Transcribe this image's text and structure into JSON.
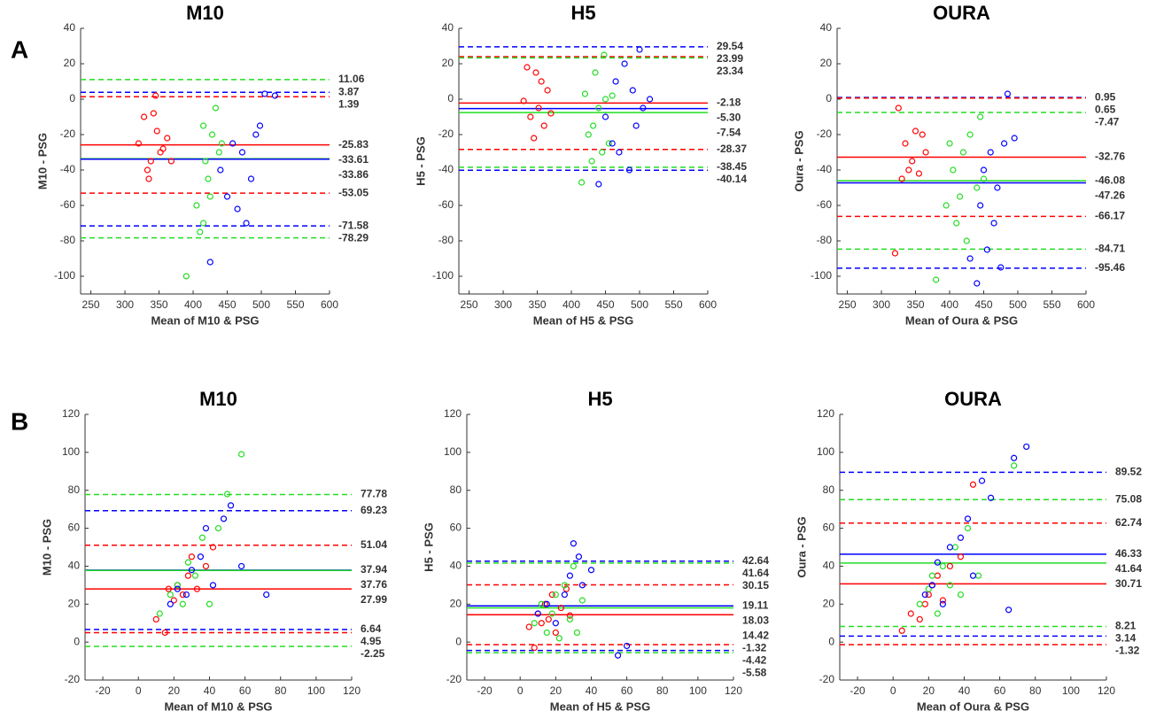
{
  "panel_labels": [
    "A",
    "B"
  ],
  "chart_data": [
    {
      "type": "scatter",
      "title": "M10",
      "xlabel": "Mean of M10 & PSG",
      "ylabel": "M10 - PSG",
      "xlim": [
        235,
        600
      ],
      "ylim": [
        -110,
        40
      ],
      "xticks": [
        250,
        300,
        350,
        400,
        450,
        500,
        550,
        600
      ],
      "yticks": [
        -100,
        -80,
        -60,
        -40,
        -20,
        0,
        20,
        40
      ],
      "series": [
        {
          "color": "#ff0000",
          "x": [
            320,
            328,
            333,
            338,
            342,
            347,
            352,
            356,
            362,
            368,
            335,
            345
          ],
          "values": [
            -25,
            -10,
            -40,
            -35,
            -8,
            -18,
            -30,
            -28,
            -22,
            -35,
            -45,
            2
          ]
        },
        {
          "color": "#22dd22",
          "x": [
            390,
            405,
            410,
            415,
            418,
            422,
            428,
            433,
            438,
            442,
            415,
            425
          ],
          "values": [
            -100,
            -60,
            -75,
            -15,
            -35,
            -45,
            -20,
            -5,
            -30,
            -25,
            -70,
            -55
          ]
        },
        {
          "color": "#0000ff",
          "x": [
            425,
            440,
            450,
            458,
            465,
            472,
            478,
            485,
            492,
            498,
            505,
            520
          ],
          "values": [
            -92,
            -40,
            -55,
            -25,
            -62,
            -30,
            -70,
            -45,
            -20,
            -15,
            3,
            2
          ]
        }
      ],
      "lines": [
        {
          "value": 11.06,
          "color": "#22dd22",
          "dashed": true
        },
        {
          "value": 3.87,
          "color": "#0000ff",
          "dashed": true
        },
        {
          "value": 1.39,
          "color": "#ff0000",
          "dashed": true
        },
        {
          "value": -25.83,
          "color": "#ff0000",
          "dashed": false
        },
        {
          "value": -33.61,
          "color": "#22dd22",
          "dashed": false
        },
        {
          "value": -33.86,
          "color": "#0000ff",
          "dashed": false
        },
        {
          "value": -53.05,
          "color": "#ff0000",
          "dashed": true
        },
        {
          "value": -71.58,
          "color": "#0000ff",
          "dashed": true
        },
        {
          "value": -78.29,
          "color": "#22dd22",
          "dashed": true
        }
      ]
    },
    {
      "type": "scatter",
      "title": "H5",
      "xlabel": "Mean of H5 & PSG",
      "ylabel": "H5 - PSG",
      "xlim": [
        235,
        600
      ],
      "ylim": [
        -110,
        40
      ],
      "xticks": [
        250,
        300,
        350,
        400,
        450,
        500,
        550,
        600
      ],
      "yticks": [
        -100,
        -80,
        -60,
        -40,
        -20,
        0,
        20,
        40
      ],
      "series": [
        {
          "color": "#ff0000",
          "x": [
            330,
            335,
            340,
            345,
            348,
            352,
            356,
            360,
            365,
            370
          ],
          "values": [
            -1,
            18,
            -10,
            -22,
            15,
            -5,
            10,
            -15,
            5,
            -8
          ]
        },
        {
          "color": "#22dd22",
          "x": [
            415,
            420,
            425,
            430,
            435,
            440,
            445,
            450,
            455,
            460,
            432,
            448
          ],
          "values": [
            -47,
            3,
            -20,
            -35,
            15,
            -5,
            -30,
            0,
            -25,
            2,
            -15,
            25
          ]
        },
        {
          "color": "#0000ff",
          "x": [
            440,
            450,
            460,
            465,
            470,
            478,
            485,
            490,
            495,
            500,
            505,
            515
          ],
          "values": [
            -48,
            -10,
            -25,
            10,
            -30,
            20,
            -40,
            5,
            -15,
            28,
            -5,
            0
          ]
        }
      ],
      "lines": [
        {
          "value": 29.54,
          "color": "#0000ff",
          "dashed": true
        },
        {
          "value": 23.99,
          "color": "#ff0000",
          "dashed": true
        },
        {
          "value": 23.34,
          "color": "#22dd22",
          "dashed": true
        },
        {
          "value": -2.18,
          "color": "#ff0000",
          "dashed": false
        },
        {
          "value": -5.3,
          "label": "-5.30",
          "color": "#0000ff",
          "dashed": false
        },
        {
          "value": -7.54,
          "color": "#22dd22",
          "dashed": false
        },
        {
          "value": -28.37,
          "color": "#ff0000",
          "dashed": true
        },
        {
          "value": -38.45,
          "color": "#22dd22",
          "dashed": true
        },
        {
          "value": -40.14,
          "color": "#0000ff",
          "dashed": true
        }
      ]
    },
    {
      "type": "scatter",
      "title": "OURA",
      "xlabel": "Mean of Oura & PSG",
      "ylabel": "Oura - PSG",
      "xlim": [
        235,
        600
      ],
      "ylim": [
        -110,
        40
      ],
      "xticks": [
        250,
        300,
        350,
        400,
        450,
        500,
        550,
        600
      ],
      "yticks": [
        -100,
        -80,
        -60,
        -40,
        -20,
        0,
        20,
        40
      ],
      "series": [
        {
          "color": "#ff0000",
          "x": [
            320,
            325,
            330,
            335,
            340,
            345,
            350,
            355,
            360,
            365
          ],
          "values": [
            -87,
            -5,
            -45,
            -25,
            -40,
            -35,
            -18,
            -42,
            -20,
            -30
          ]
        },
        {
          "color": "#22dd22",
          "x": [
            380,
            395,
            400,
            405,
            410,
            415,
            420,
            425,
            430,
            440,
            445,
            450
          ],
          "values": [
            -102,
            -60,
            -25,
            -40,
            -70,
            -55,
            -30,
            -80,
            -20,
            -50,
            -10,
            -45
          ]
        },
        {
          "color": "#0000ff",
          "x": [
            430,
            440,
            445,
            450,
            455,
            460,
            465,
            470,
            475,
            480,
            485,
            495
          ],
          "values": [
            -90,
            -104,
            -60,
            -40,
            -85,
            -30,
            -70,
            -50,
            -95,
            -25,
            3,
            -22
          ]
        }
      ],
      "lines": [
        {
          "value": 0.95,
          "color": "#0000ff",
          "dashed": true
        },
        {
          "value": 0.65,
          "color": "#ff0000",
          "dashed": true
        },
        {
          "value": -7.47,
          "color": "#22dd22",
          "dashed": true
        },
        {
          "value": -32.76,
          "color": "#ff0000",
          "dashed": false
        },
        {
          "value": -46.08,
          "color": "#22dd22",
          "dashed": false
        },
        {
          "value": -47.26,
          "color": "#0000ff",
          "dashed": false
        },
        {
          "value": -66.17,
          "color": "#ff0000",
          "dashed": true
        },
        {
          "value": -84.71,
          "color": "#22dd22",
          "dashed": true
        },
        {
          "value": -95.46,
          "color": "#0000ff",
          "dashed": true
        }
      ]
    },
    {
      "type": "scatter",
      "title": "M10",
      "xlabel": "Mean of M10 & PSG",
      "ylabel": "M10 - PSG",
      "xlim": [
        -30,
        120
      ],
      "ylim": [
        -20,
        120
      ],
      "xticks": [
        -20,
        0,
        20,
        40,
        60,
        80,
        100,
        120
      ],
      "yticks": [
        -20,
        0,
        20,
        40,
        60,
        80,
        100,
        120
      ],
      "series": [
        {
          "color": "#ff0000",
          "x": [
            10,
            15,
            17,
            20,
            22,
            25,
            28,
            30,
            33,
            38,
            42
          ],
          "values": [
            12,
            5,
            28,
            22,
            30,
            25,
            35,
            45,
            28,
            40,
            50
          ]
        },
        {
          "color": "#22dd22",
          "x": [
            12,
            18,
            22,
            25,
            28,
            32,
            36,
            40,
            45,
            50,
            58
          ],
          "values": [
            15,
            25,
            30,
            20,
            42,
            35,
            55,
            20,
            60,
            78,
            99
          ]
        },
        {
          "color": "#0000ff",
          "x": [
            18,
            22,
            27,
            30,
            35,
            38,
            42,
            48,
            52,
            58,
            72
          ],
          "values": [
            20,
            28,
            25,
            38,
            45,
            60,
            30,
            65,
            72,
            40,
            25
          ]
        }
      ],
      "lines": [
        {
          "value": 77.78,
          "color": "#22dd22",
          "dashed": true
        },
        {
          "value": 69.23,
          "color": "#0000ff",
          "dashed": true
        },
        {
          "value": 51.04,
          "color": "#ff0000",
          "dashed": true
        },
        {
          "value": 37.94,
          "color": "#0000ff",
          "dashed": false
        },
        {
          "value": 37.76,
          "color": "#22dd22",
          "dashed": false
        },
        {
          "value": 27.99,
          "color": "#ff0000",
          "dashed": false
        },
        {
          "value": 6.64,
          "color": "#0000ff",
          "dashed": true
        },
        {
          "value": 4.95,
          "color": "#ff0000",
          "dashed": true
        },
        {
          "value": -2.25,
          "color": "#22dd22",
          "dashed": true
        }
      ]
    },
    {
      "type": "scatter",
      "title": "H5",
      "xlabel": "Mean of H5 & PSG",
      "ylabel": "H5 - PSG",
      "xlim": [
        -30,
        120
      ],
      "ylim": [
        -20,
        120
      ],
      "xticks": [
        -20,
        0,
        20,
        40,
        60,
        80,
        100,
        120
      ],
      "yticks": [
        -20,
        0,
        20,
        40,
        60,
        80,
        100,
        120
      ],
      "series": [
        {
          "color": "#ff0000",
          "x": [
            5,
            8,
            10,
            12,
            14,
            16,
            18,
            20,
            23,
            26,
            28
          ],
          "values": [
            8,
            -3,
            15,
            10,
            20,
            12,
            25,
            5,
            18,
            28,
            14
          ]
        },
        {
          "color": "#22dd22",
          "x": [
            8,
            12,
            15,
            18,
            20,
            22,
            25,
            28,
            30,
            32,
            35
          ],
          "values": [
            10,
            20,
            5,
            15,
            25,
            2,
            30,
            12,
            40,
            5,
            22
          ]
        },
        {
          "color": "#0000ff",
          "x": [
            10,
            15,
            20,
            25,
            28,
            30,
            33,
            35,
            40,
            55,
            60
          ],
          "values": [
            15,
            20,
            10,
            25,
            35,
            52,
            45,
            30,
            38,
            -7,
            -2
          ]
        }
      ],
      "lines": [
        {
          "value": 42.64,
          "color": "#0000ff",
          "dashed": true
        },
        {
          "value": 41.64,
          "color": "#22dd22",
          "dashed": true
        },
        {
          "value": 30.15,
          "color": "#ff0000",
          "dashed": true
        },
        {
          "value": 19.11,
          "color": "#0000ff",
          "dashed": false
        },
        {
          "value": 18.03,
          "color": "#22dd22",
          "dashed": false
        },
        {
          "value": 14.42,
          "color": "#ff0000",
          "dashed": false
        },
        {
          "value": -1.32,
          "color": "#ff0000",
          "dashed": true
        },
        {
          "value": -4.42,
          "color": "#0000ff",
          "dashed": true
        },
        {
          "value": -5.58,
          "color": "#22dd22",
          "dashed": true
        }
      ]
    },
    {
      "type": "scatter",
      "title": "OURA",
      "xlabel": "Mean of Oura & PSG",
      "ylabel": "Oura - PSG",
      "xlim": [
        -30,
        120
      ],
      "ylim": [
        -20,
        120
      ],
      "xticks": [
        -20,
        0,
        20,
        40,
        60,
        80,
        100,
        120
      ],
      "yticks": [
        -20,
        0,
        20,
        40,
        60,
        80,
        100,
        120
      ],
      "series": [
        {
          "color": "#ff0000",
          "x": [
            5,
            10,
            15,
            18,
            20,
            22,
            25,
            28,
            32,
            38,
            45
          ],
          "values": [
            6,
            15,
            12,
            20,
            25,
            30,
            35,
            22,
            40,
            45,
            83
          ]
        },
        {
          "color": "#22dd22",
          "x": [
            15,
            20,
            22,
            25,
            28,
            32,
            35,
            38,
            42,
            48,
            68
          ],
          "values": [
            20,
            28,
            35,
            15,
            40,
            30,
            50,
            25,
            60,
            35,
            93
          ]
        },
        {
          "color": "#0000ff",
          "x": [
            18,
            22,
            25,
            28,
            32,
            38,
            42,
            45,
            50,
            55,
            65,
            68,
            75
          ],
          "values": [
            25,
            30,
            42,
            20,
            50,
            55,
            65,
            35,
            85,
            76,
            17,
            97,
            103
          ]
        }
      ],
      "lines": [
        {
          "value": 89.52,
          "color": "#0000ff",
          "dashed": true
        },
        {
          "value": 75.08,
          "color": "#22dd22",
          "dashed": true
        },
        {
          "value": 62.74,
          "color": "#ff0000",
          "dashed": true
        },
        {
          "value": 46.33,
          "color": "#0000ff",
          "dashed": false
        },
        {
          "value": 41.64,
          "color": "#22dd22",
          "dashed": false
        },
        {
          "value": 30.71,
          "color": "#ff0000",
          "dashed": false
        },
        {
          "value": 8.21,
          "color": "#22dd22",
          "dashed": true
        },
        {
          "value": 3.14,
          "color": "#0000ff",
          "dashed": true
        },
        {
          "value": -1.32,
          "color": "#ff0000",
          "dashed": true
        }
      ]
    }
  ]
}
